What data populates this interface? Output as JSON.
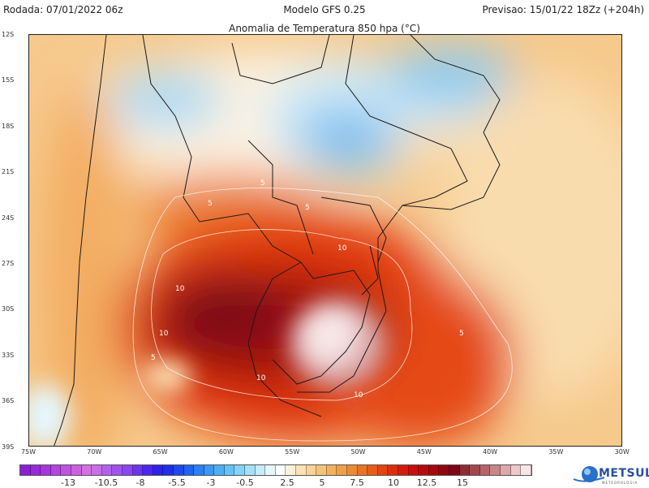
{
  "header": {
    "run": "Rodada: 07/01/2022 06z",
    "model": "Modelo GFS 0.25",
    "forecast": "Previsao: 15/01/22 18Zz (+204h)"
  },
  "title": "Anomalia de Temperatura 850 hpa (°C)",
  "lat_labels": [
    "12S",
    "15S",
    "18S",
    "21S",
    "24S",
    "27S",
    "30S",
    "33S",
    "36S",
    "39S"
  ],
  "lon_labels": [
    "75W",
    "70W",
    "65W",
    "60W",
    "55W",
    "50W",
    "45W",
    "40W",
    "35W",
    "30W"
  ],
  "contour_labels": [
    "5",
    "5",
    "10",
    "10",
    "10",
    "10",
    "5",
    "10",
    "5",
    "5"
  ],
  "colorbar": {
    "tick_labels": [
      "-13",
      "-10.5",
      "-8",
      "-5.5",
      "-3",
      "-0.5",
      "2.5",
      "5",
      "7.5",
      "10",
      "12.5",
      "15"
    ],
    "colors": [
      "#8a1fd6",
      "#9a2ad9",
      "#a535dc",
      "#b444de",
      "#c052e0",
      "#cc5fe2",
      "#d66ee4",
      "#c76ee8",
      "#b560ec",
      "#a052ef",
      "#8a46f0",
      "#6a35f2",
      "#4a28f0",
      "#2d22e8",
      "#1d30e6",
      "#1d48ea",
      "#1f63ee",
      "#2a7ff1",
      "#3a98f3",
      "#4eaef5",
      "#66c2f7",
      "#84d3f8",
      "#a4e1f9",
      "#c4edfb",
      "#e4f7fd",
      "#ffffff",
      "#fdf2d8",
      "#fbe3b4",
      "#f9d494",
      "#f6c478",
      "#f3b25e",
      "#f09f47",
      "#ed8a33",
      "#ea7424",
      "#e75c18",
      "#e34410",
      "#de2d0c",
      "#d41c0a",
      "#c80f0a",
      "#b80a0c",
      "#a6080e",
      "#920711",
      "#7e0714",
      "#8e2c34",
      "#a2474e",
      "#b66469",
      "#c98588",
      "#dca8aa",
      "#ecc9ca",
      "#f8e6e6"
    ]
  },
  "logo": {
    "name": "METSUL",
    "subtitle": "METEOROLOGIA"
  }
}
